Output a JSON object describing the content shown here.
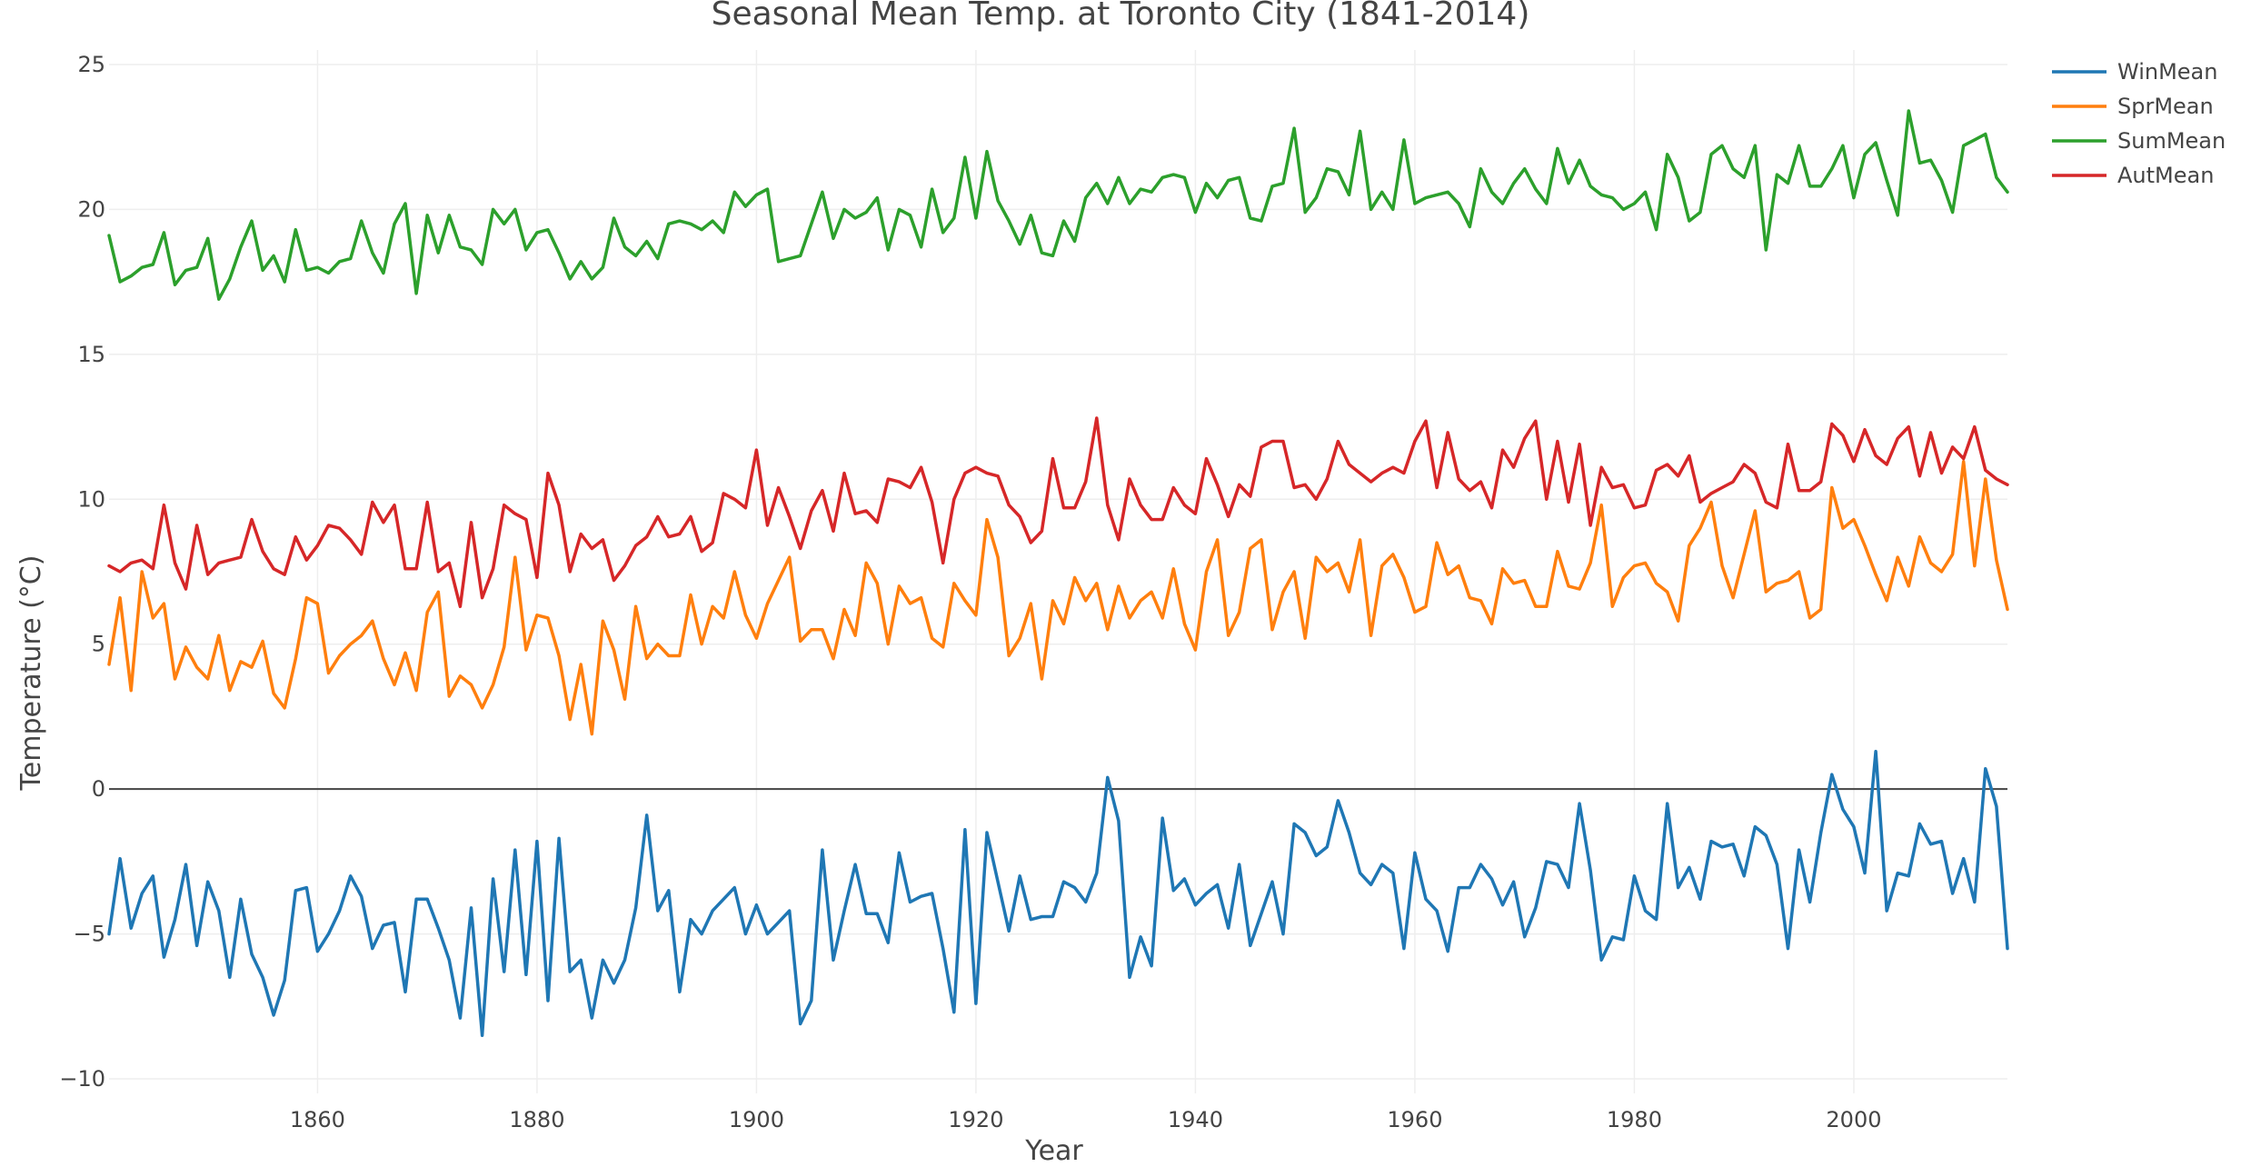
{
  "chart_data": {
    "type": "line",
    "title": "Seasonal Mean Temp. at Toronto City (1841-2014)",
    "xlabel": "Year",
    "ylabel": "Temperature (°C)",
    "xlim": [
      1841,
      2014
    ],
    "ylim": [
      -10.5,
      25.5
    ],
    "x_ticks": [
      1860,
      1880,
      1900,
      1920,
      1940,
      1960,
      1980,
      2000
    ],
    "y_ticks": [
      -10,
      -5,
      0,
      5,
      10,
      15,
      20,
      25
    ],
    "grid": true,
    "zero_line": true,
    "legend_position": "top-right",
    "x_start": 1841,
    "series": [
      {
        "name": "WinMean",
        "color": "#1f77b4",
        "values": [
          -5.0,
          -2.4,
          -4.8,
          -3.6,
          -3.0,
          -5.8,
          -4.5,
          -2.6,
          -5.4,
          -3.2,
          -4.2,
          -6.5,
          -3.8,
          -5.7,
          -6.5,
          -7.8,
          -6.6,
          -3.5,
          -3.4,
          -5.6,
          -5.0,
          -4.2,
          -3.0,
          -3.7,
          -5.5,
          -4.7,
          -4.6,
          -7.0,
          -3.8,
          -3.8,
          -4.8,
          -5.9,
          -7.9,
          -4.1,
          -8.5,
          -3.1,
          -6.3,
          -2.1,
          -6.4,
          -1.8,
          -7.3,
          -1.7,
          -6.3,
          -5.9,
          -7.9,
          -5.9,
          -6.7,
          -5.9,
          -4.1,
          -0.9,
          -4.2,
          -3.5,
          -7.0,
          -4.5,
          -5.0,
          -4.2,
          -3.8,
          -3.4,
          -5.0,
          -4.0,
          -5.0,
          -4.6,
          -4.2,
          -8.1,
          -7.3,
          -2.1,
          -5.9,
          -4.2,
          -2.6,
          -4.3,
          -4.3,
          -5.3,
          -2.2,
          -3.9,
          -3.7,
          -3.6,
          -5.5,
          -7.7,
          -1.4,
          -7.4,
          -1.5,
          -3.2,
          -4.9,
          -3.0,
          -4.5,
          -4.4,
          -4.4,
          -3.2,
          -3.4,
          -3.9,
          -2.9,
          0.4,
          -1.1,
          -6.5,
          -5.1,
          -6.1,
          -1.0,
          -3.5,
          -3.1,
          -4.0,
          -3.6,
          -3.3,
          -4.8,
          -2.6,
          -5.4,
          -4.3,
          -3.2,
          -5.0,
          -1.2,
          -1.5,
          -2.3,
          -2.0,
          -0.4,
          -1.5,
          -2.9,
          -3.3,
          -2.6,
          -2.9,
          -5.5,
          -2.2,
          -3.8,
          -4.2,
          -5.6,
          -3.4,
          -3.4,
          -2.6,
          -3.1,
          -4.0,
          -3.2,
          -5.1,
          -4.1,
          -2.5,
          -2.6,
          -3.4,
          -0.5,
          -2.8,
          -5.9,
          -5.1,
          -5.2,
          -3.0,
          -4.2,
          -4.5,
          -0.5,
          -3.4,
          -2.7,
          -3.8,
          -1.8,
          -2.0,
          -1.9,
          -3.0,
          -1.3,
          -1.6,
          -2.6,
          -5.5,
          -2.1,
          -3.9,
          -1.5,
          0.5,
          -0.7,
          -1.3,
          -2.9,
          1.3,
          -4.2,
          -2.9,
          -3.0,
          -1.2,
          -1.9,
          -1.8,
          -3.6,
          -2.4,
          -3.9,
          0.7,
          -0.6,
          -5.5
        ]
      },
      {
        "name": "SprMean",
        "color": "#ff7f0e",
        "values": [
          4.3,
          6.6,
          3.4,
          7.5,
          5.9,
          6.4,
          3.8,
          4.9,
          4.2,
          3.8,
          5.3,
          3.4,
          4.4,
          4.2,
          5.1,
          3.3,
          2.8,
          4.5,
          6.6,
          6.4,
          4.0,
          4.6,
          5.0,
          5.3,
          5.8,
          4.5,
          3.6,
          4.7,
          3.4,
          6.1,
          6.8,
          3.2,
          3.9,
          3.6,
          2.8,
          3.6,
          4.9,
          8.0,
          4.8,
          6.0,
          5.9,
          4.6,
          2.4,
          4.3,
          1.9,
          5.8,
          4.8,
          3.1,
          6.3,
          4.5,
          5.0,
          4.6,
          4.6,
          6.7,
          5.0,
          6.3,
          5.9,
          7.5,
          6.0,
          5.2,
          6.4,
          7.2,
          8.0,
          5.1,
          5.5,
          5.5,
          4.5,
          6.2,
          5.3,
          7.8,
          7.1,
          5.0,
          7.0,
          6.4,
          6.6,
          5.2,
          4.9,
          7.1,
          6.5,
          6.0,
          9.3,
          8.0,
          4.6,
          5.2,
          6.4,
          3.8,
          6.5,
          5.7,
          7.3,
          6.5,
          7.1,
          5.5,
          7.0,
          5.9,
          6.5,
          6.8,
          5.9,
          7.6,
          5.7,
          4.8,
          7.5,
          8.6,
          5.3,
          6.1,
          8.3,
          8.6,
          5.5,
          6.8,
          7.5,
          5.2,
          8.0,
          7.5,
          7.8,
          6.8,
          8.6,
          5.3,
          7.7,
          8.1,
          7.3,
          6.1,
          6.3,
          8.5,
          7.4,
          7.7,
          6.6,
          6.5,
          5.7,
          7.6,
          7.1,
          7.2,
          6.3,
          6.3,
          8.2,
          7.0,
          6.9,
          7.8,
          9.8,
          6.3,
          7.3,
          7.7,
          7.8,
          7.1,
          6.8,
          5.8,
          8.4,
          9.0,
          9.9,
          7.7,
          6.6,
          8.1,
          9.6,
          6.8,
          7.1,
          7.2,
          7.5,
          5.9,
          6.2,
          10.4,
          9.0,
          9.3,
          8.4,
          7.4,
          6.5,
          8.0,
          7.0,
          8.7,
          7.8,
          7.5,
          8.1,
          11.3,
          7.7,
          10.7,
          7.9,
          6.2
        ]
      },
      {
        "name": "SumMean",
        "color": "#2ca02c",
        "values": [
          19.1,
          17.5,
          17.7,
          18.0,
          18.1,
          19.2,
          17.4,
          17.9,
          18.0,
          19.0,
          16.9,
          17.6,
          18.7,
          19.6,
          17.9,
          18.4,
          17.5,
          19.3,
          17.9,
          18.0,
          17.8,
          18.2,
          18.3,
          19.6,
          18.5,
          17.8,
          19.5,
          20.2,
          17.1,
          19.8,
          18.5,
          19.8,
          18.7,
          18.6,
          18.1,
          20.0,
          19.5,
          20.0,
          18.6,
          19.2,
          19.3,
          18.5,
          17.6,
          18.2,
          17.6,
          18.0,
          19.7,
          18.7,
          18.4,
          18.9,
          18.3,
          19.5,
          19.6,
          19.5,
          19.3,
          19.6,
          19.2,
          20.6,
          20.1,
          20.5,
          20.7,
          18.2,
          18.3,
          18.4,
          19.5,
          20.6,
          19.0,
          20.0,
          19.7,
          19.9,
          20.4,
          18.6,
          20.0,
          19.8,
          18.7,
          20.7,
          19.2,
          19.7,
          21.8,
          19.7,
          22.0,
          20.3,
          19.6,
          18.8,
          19.8,
          18.5,
          18.4,
          19.6,
          18.9,
          20.4,
          20.9,
          20.2,
          21.1,
          20.2,
          20.7,
          20.6,
          21.1,
          21.2,
          21.1,
          19.9,
          20.9,
          20.4,
          21.0,
          21.1,
          19.7,
          19.6,
          20.8,
          20.9,
          22.8,
          19.9,
          20.4,
          21.4,
          21.3,
          20.5,
          22.7,
          20.0,
          20.6,
          20.0,
          22.4,
          20.2,
          20.4,
          20.5,
          20.6,
          20.2,
          19.4,
          21.4,
          20.6,
          20.2,
          20.9,
          21.4,
          20.7,
          20.2,
          22.1,
          20.9,
          21.7,
          20.8,
          20.5,
          20.4,
          20.0,
          20.2,
          20.6,
          19.3,
          21.9,
          21.1,
          19.6,
          19.9,
          21.9,
          22.2,
          21.4,
          21.1,
          22.2,
          18.6,
          21.2,
          20.9,
          22.2,
          20.8,
          20.8,
          21.4,
          22.2,
          20.4,
          21.9,
          22.3,
          21.0,
          19.8,
          23.4,
          21.6,
          21.7,
          21.0,
          19.9,
          22.2,
          22.4,
          22.6,
          21.1,
          20.6
        ]
      },
      {
        "name": "AutMean",
        "color": "#d62728",
        "values": [
          7.7,
          7.5,
          7.8,
          7.9,
          7.6,
          9.8,
          7.8,
          6.9,
          9.1,
          7.4,
          7.8,
          7.9,
          8.0,
          9.3,
          8.2,
          7.6,
          7.4,
          8.7,
          7.9,
          8.4,
          9.1,
          9.0,
          8.6,
          8.1,
          9.9,
          9.2,
          9.8,
          7.6,
          7.6,
          9.9,
          7.5,
          7.8,
          6.3,
          9.2,
          6.6,
          7.6,
          9.8,
          9.5,
          9.3,
          7.3,
          10.9,
          9.8,
          7.5,
          8.8,
          8.3,
          8.6,
          7.2,
          7.7,
          8.4,
          8.7,
          9.4,
          8.7,
          8.8,
          9.4,
          8.2,
          8.5,
          10.2,
          10.0,
          9.7,
          11.7,
          9.1,
          10.4,
          9.4,
          8.3,
          9.6,
          10.3,
          8.9,
          10.9,
          9.5,
          9.6,
          9.2,
          10.7,
          10.6,
          10.4,
          11.1,
          9.9,
          7.8,
          10.0,
          10.9,
          11.1,
          10.9,
          10.8,
          9.8,
          9.4,
          8.5,
          8.9,
          11.4,
          9.7,
          9.7,
          10.6,
          12.8,
          9.8,
          8.6,
          10.7,
          9.8,
          9.3,
          9.3,
          10.4,
          9.8,
          9.5,
          11.4,
          10.5,
          9.4,
          10.5,
          10.1,
          11.8,
          12.0,
          12.0,
          10.4,
          10.5,
          10.0,
          10.7,
          12.0,
          11.2,
          10.9,
          10.6,
          10.9,
          11.1,
          10.9,
          12.0,
          12.7,
          10.4,
          12.3,
          10.7,
          10.3,
          10.6,
          9.7,
          11.7,
          11.1,
          12.1,
          12.7,
          10.0,
          12.0,
          9.9,
          11.9,
          9.1,
          11.1,
          10.4,
          10.5,
          9.7,
          9.8,
          11.0,
          11.2,
          10.8,
          11.5,
          9.9,
          10.2,
          10.4,
          10.6,
          11.2,
          10.9,
          9.9,
          9.7,
          11.9,
          10.3,
          10.3,
          10.6,
          12.6,
          12.2,
          11.3,
          12.4,
          11.5,
          11.2,
          12.1,
          12.5,
          10.8,
          12.3,
          10.9,
          11.8,
          11.4,
          12.5,
          11.0,
          10.7,
          10.5
        ]
      }
    ]
  }
}
